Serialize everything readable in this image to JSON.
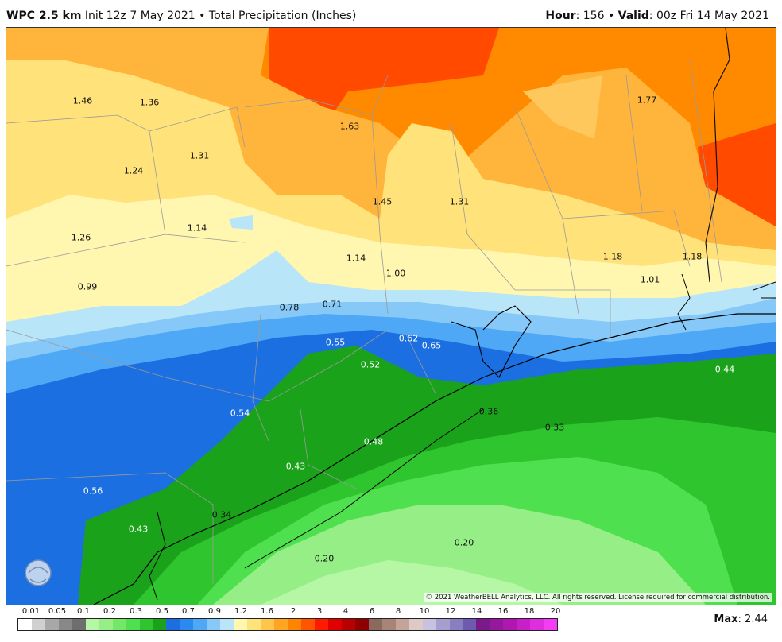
{
  "header": {
    "model": "WPC 2.5 km",
    "init": "Init 12z 7 May 2021",
    "sep": "•",
    "field": "Total Precipitation (Inches)",
    "hour_label": "Hour",
    "hour_value": ": 156",
    "valid_label": "Valid",
    "valid_value": ": 00z Fri 14 May 2021"
  },
  "map": {
    "copyright": "© 2021 WeatherBELL Analytics, LLC. All rights reserved. License required for commercial distribution.",
    "logo_text": "WEATHERBELL",
    "labels": [
      {
        "text": "1.46",
        "dark": true
      },
      {
        "text": "1.36",
        "dark": true
      },
      {
        "text": "1.63",
        "dark": true
      },
      {
        "text": "1.77",
        "dark": true
      },
      {
        "text": "1.31",
        "dark": true
      },
      {
        "text": "1.24",
        "dark": true
      },
      {
        "text": "1.45",
        "dark": true
      },
      {
        "text": "1.31",
        "dark": true
      },
      {
        "text": "1.26",
        "dark": true
      },
      {
        "text": "1.14",
        "dark": true
      },
      {
        "text": "1.14",
        "dark": true
      },
      {
        "text": "1.18",
        "dark": true
      },
      {
        "text": "1.18",
        "dark": true
      },
      {
        "text": "1.00",
        "dark": true
      },
      {
        "text": "1.01",
        "dark": true
      },
      {
        "text": "0.99",
        "dark": true
      },
      {
        "text": "0.78",
        "dark": true
      },
      {
        "text": "0.71",
        "dark": true
      },
      {
        "text": "0.55",
        "dark": false
      },
      {
        "text": "0.62",
        "dark": false
      },
      {
        "text": "0.65",
        "dark": false
      },
      {
        "text": "0.52",
        "dark": false
      },
      {
        "text": "0.44",
        "dark": false
      },
      {
        "text": "0.36",
        "dark": true
      },
      {
        "text": "0.54",
        "dark": false
      },
      {
        "text": "0.33",
        "dark": true
      },
      {
        "text": "0.48",
        "dark": false
      },
      {
        "text": "0.43",
        "dark": false
      },
      {
        "text": "0.56",
        "dark": false
      },
      {
        "text": "0.34",
        "dark": true
      },
      {
        "text": "0.43",
        "dark": false
      },
      {
        "text": "0.20",
        "dark": true
      },
      {
        "text": "0.20",
        "dark": true
      }
    ]
  },
  "legend": {
    "ticks": [
      "0.01",
      "0.05",
      "0.1",
      "0.2",
      "0.3",
      "0.5",
      "0.7",
      "0.9",
      "1.2",
      "1.6",
      "2",
      "3",
      "4",
      "6",
      "8",
      "10",
      "12",
      "14",
      "16",
      "18",
      "20"
    ],
    "colors": [
      "#ffffff",
      "#d0d0d0",
      "#a8a8a8",
      "#888888",
      "#6e6e6e",
      "#b6f7a6",
      "#96ef86",
      "#74e866",
      "#4fe04f",
      "#2fc52f",
      "#1aa21a",
      "#1c6fe0",
      "#2a8af0",
      "#4fa8f5",
      "#86c8f7",
      "#b8e6f8",
      "#fff6b0",
      "#ffe27a",
      "#ffc44c",
      "#ffa522",
      "#ff8400",
      "#ff5400",
      "#ff1a00",
      "#e00000",
      "#b80000",
      "#8f0000",
      "#8a6a5e",
      "#a88478",
      "#c3a39a",
      "#decac4",
      "#c8c2e0",
      "#a79ed0",
      "#8a7dc0",
      "#6e5ab0",
      "#7a1a8c",
      "#96189c",
      "#b016b2",
      "#c81fc8",
      "#de2ee0",
      "#f53cf5"
    ],
    "max_label": "Max",
    "max_value": ": 2.44"
  }
}
